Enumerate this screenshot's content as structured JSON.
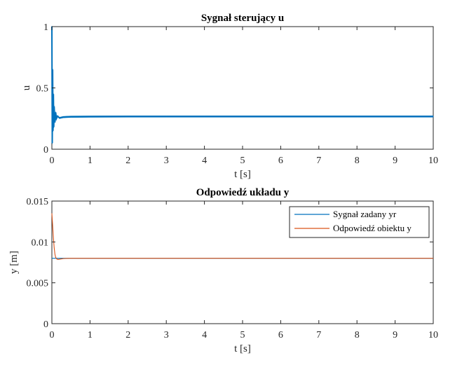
{
  "chart_data": [
    {
      "type": "line",
      "title": "Sygnał sterujący u",
      "xlabel": "t [s]",
      "ylabel": "u",
      "xlim": [
        0,
        10
      ],
      "ylim": [
        0,
        1
      ],
      "xticks": [
        0,
        1,
        2,
        3,
        4,
        5,
        6,
        7,
        8,
        9,
        10
      ],
      "xtick_labels": [
        "0",
        "1",
        "2",
        "3",
        "4",
        "5",
        "6",
        "7",
        "8",
        "9",
        "10"
      ],
      "yticks": [
        0,
        0.5,
        1
      ],
      "ytick_labels": [
        "0",
        "0.5",
        "1"
      ],
      "grid": false,
      "series": [
        {
          "color": "#0072BD",
          "x": [
            0,
            0.01,
            0.02,
            0.03,
            0.04,
            0.05,
            0.06,
            0.08,
            0.1,
            0.12,
            0.15,
            0.2,
            0.3,
            0.5,
            1,
            2,
            3,
            4,
            5,
            6,
            7,
            8,
            9,
            10
          ],
          "y": [
            1.0,
            0.05,
            0.65,
            0.15,
            0.45,
            0.18,
            0.35,
            0.22,
            0.3,
            0.25,
            0.27,
            0.255,
            0.262,
            0.265,
            0.266,
            0.267,
            0.267,
            0.267,
            0.267,
            0.267,
            0.267,
            0.267,
            0.267,
            0.267
          ],
          "band": 0.012
        }
      ]
    },
    {
      "type": "line",
      "title": "Odpowiedź układu y",
      "xlabel": "t [s]",
      "ylabel": "y [m]",
      "xlim": [
        0,
        10
      ],
      "ylim": [
        0,
        0.015
      ],
      "xticks": [
        0,
        1,
        2,
        3,
        4,
        5,
        6,
        7,
        8,
        9,
        10
      ],
      "xtick_labels": [
        "0",
        "1",
        "2",
        "3",
        "4",
        "5",
        "6",
        "7",
        "8",
        "9",
        "10"
      ],
      "yticks": [
        0,
        0.005,
        0.01,
        0.015
      ],
      "ytick_labels": [
        "0",
        "0.005",
        "0.01",
        "0.015"
      ],
      "grid": false,
      "legend_position": "top-right",
      "series": [
        {
          "name": "Sygnał zadany yr",
          "color": "#0072BD",
          "x": [
            0,
            10
          ],
          "y": [
            0.008,
            0.008
          ]
        },
        {
          "name": "Odpowiedź obiektu y",
          "color": "#D95319",
          "x": [
            0,
            0.02,
            0.04,
            0.06,
            0.08,
            0.1,
            0.13,
            0.16,
            0.2,
            0.25,
            0.3,
            0.4,
            0.5,
            0.7,
            1,
            2,
            3,
            4,
            5,
            6,
            7,
            8,
            9,
            10
          ],
          "y": [
            0.0135,
            0.012,
            0.0105,
            0.0093,
            0.0085,
            0.0081,
            0.0079,
            0.00785,
            0.00788,
            0.00792,
            0.00796,
            0.00799,
            0.008,
            0.008,
            0.008,
            0.008,
            0.008,
            0.008,
            0.008,
            0.008,
            0.008,
            0.008,
            0.008,
            0.008
          ]
        }
      ]
    }
  ]
}
